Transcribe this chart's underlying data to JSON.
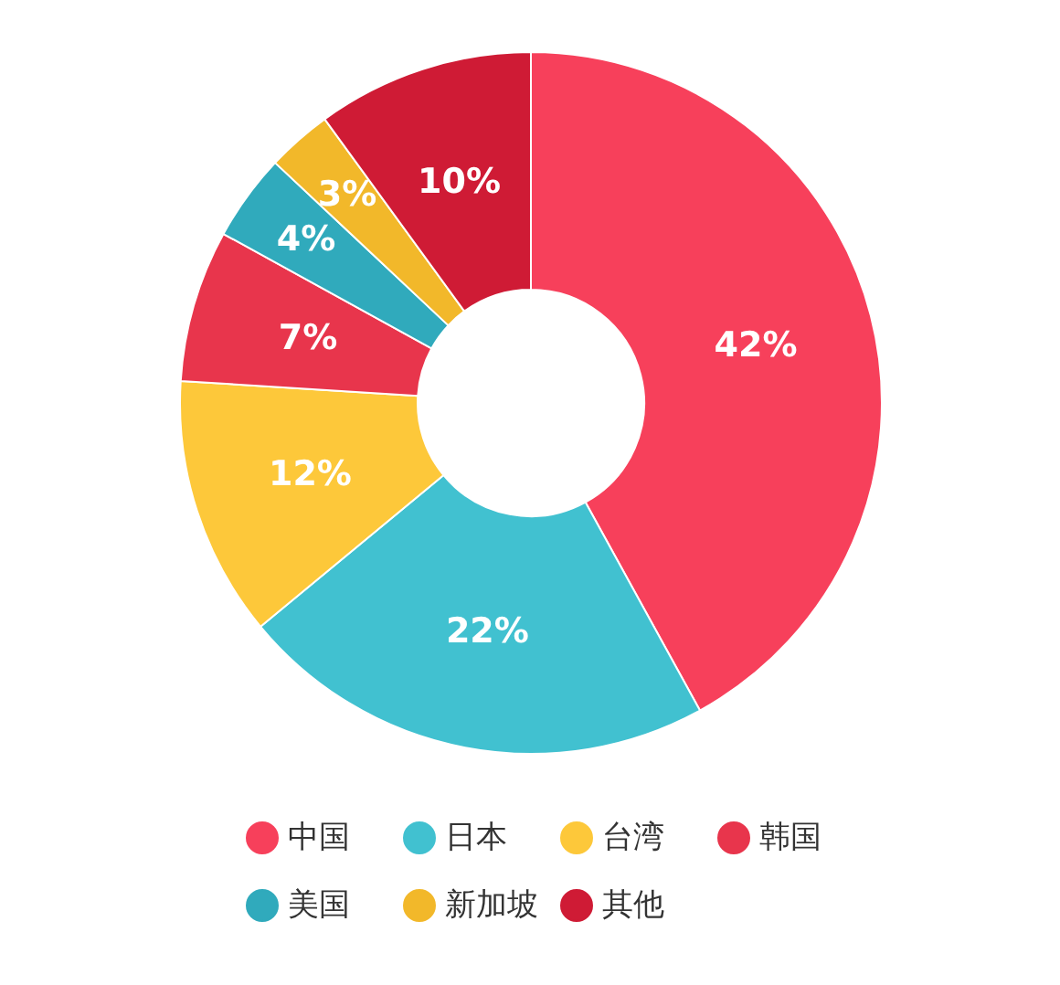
{
  "chart_data": {
    "type": "donut",
    "categories": [
      "中国",
      "日本",
      "台湾",
      "韩国",
      "美国",
      "新加坡",
      "其他"
    ],
    "values": [
      42,
      22,
      12,
      7,
      4,
      3,
      10
    ],
    "colors": [
      "#f7405b",
      "#41c1d0",
      "#fdc83a",
      "#e8354c",
      "#30aabc",
      "#f2b82a",
      "#cf1b35"
    ],
    "value_labels": [
      "42%",
      "22%",
      "12%",
      "7%",
      "4%",
      "3%",
      "10%"
    ],
    "legend": "bottom"
  }
}
